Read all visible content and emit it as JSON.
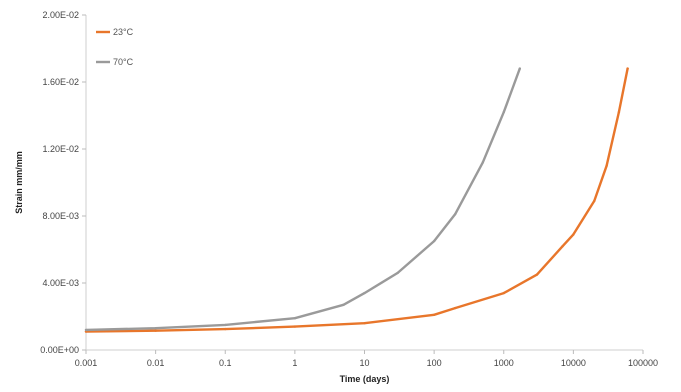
{
  "chart_data": {
    "type": "line",
    "title": "",
    "xlabel": "Time (days)",
    "ylabel": "Strain mm/mm",
    "xscale": "log",
    "xlim": [
      0.001,
      100000
    ],
    "ylim": [
      0,
      0.02
    ],
    "x_tick_labels": [
      "0.001",
      "0.01",
      "0.1",
      "1",
      "10",
      "100",
      "1000",
      "10000",
      "100000"
    ],
    "y_tick_labels": [
      "0.00E+00",
      "4.00E-03",
      "8.00E-03",
      "1.20E-02",
      "1.60E-02",
      "2.00E-02"
    ],
    "grid": false,
    "legend_position": "top-left",
    "series": [
      {
        "name": "23°C",
        "color": "#e8762b",
        "x": [
          0.001,
          0.01,
          0.1,
          1,
          10,
          100,
          200,
          1000,
          3000,
          7000,
          10000,
          20000,
          30000,
          45000,
          60000
        ],
        "y": [
          0.0011,
          0.00115,
          0.00125,
          0.0014,
          0.0016,
          0.0021,
          0.0025,
          0.0034,
          0.0045,
          0.0062,
          0.0069,
          0.0089,
          0.011,
          0.0142,
          0.0168
        ]
      },
      {
        "name": "70°C",
        "color": "#9a9a9a",
        "x": [
          0.001,
          0.01,
          0.1,
          1,
          5,
          10,
          30,
          100,
          200,
          500,
          1000,
          1700
        ],
        "y": [
          0.0012,
          0.0013,
          0.0015,
          0.0019,
          0.0027,
          0.0034,
          0.0046,
          0.0065,
          0.0081,
          0.0112,
          0.0142,
          0.0168
        ]
      }
    ]
  }
}
